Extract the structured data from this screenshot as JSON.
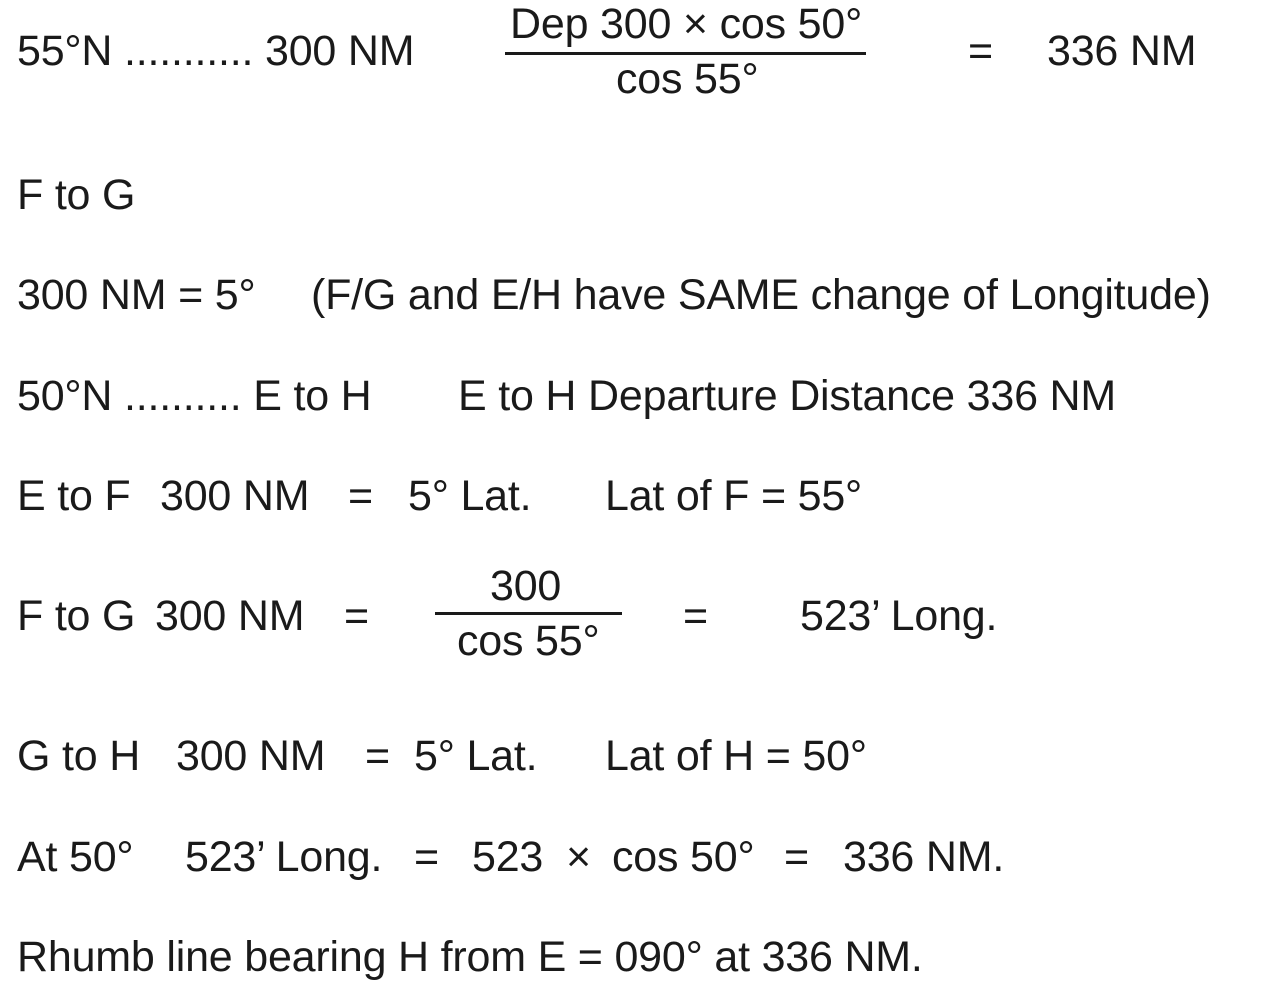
{
  "lines": {
    "l1": {
      "lat": "55°N ........... 300 NM",
      "numerator": "Dep 300 × cos 50°",
      "denominator": "cos 55°",
      "equals": "=",
      "result": "336 NM"
    },
    "l2": {
      "text": "F to G"
    },
    "l3": {
      "left": "300 NM = 5°",
      "note": "(F/G and E/H have SAME change of Longitude)"
    },
    "l4": {
      "left": "50°N .......... E to H",
      "right": "E to H Departure Distance 336 NM"
    },
    "l5": {
      "leg": "E to F",
      "dist": "300 NM",
      "equals": "=",
      "lat_change": "5° Lat.",
      "lat_of": "Lat of F = 55°"
    },
    "l6": {
      "leg": "F to G",
      "dist": "300 NM",
      "equals1": "=",
      "numerator": "300",
      "denominator": "cos 55°",
      "equals2": "=",
      "result": "523’ Long."
    },
    "l7": {
      "leg": "G to H",
      "dist": "300 NM",
      "equals": "=",
      "lat_change": "5° Lat.",
      "lat_of": "Lat of H = 50°"
    },
    "l8": {
      "at": "At 50°",
      "long": "523’ Long.",
      "eq1": "=",
      "val": "523",
      "times": "×",
      "cos": "cos 50°",
      "eq2": "=",
      "result": "336 NM."
    },
    "l9": {
      "text": "Rhumb line bearing H from E = 090° at 336 NM."
    }
  }
}
